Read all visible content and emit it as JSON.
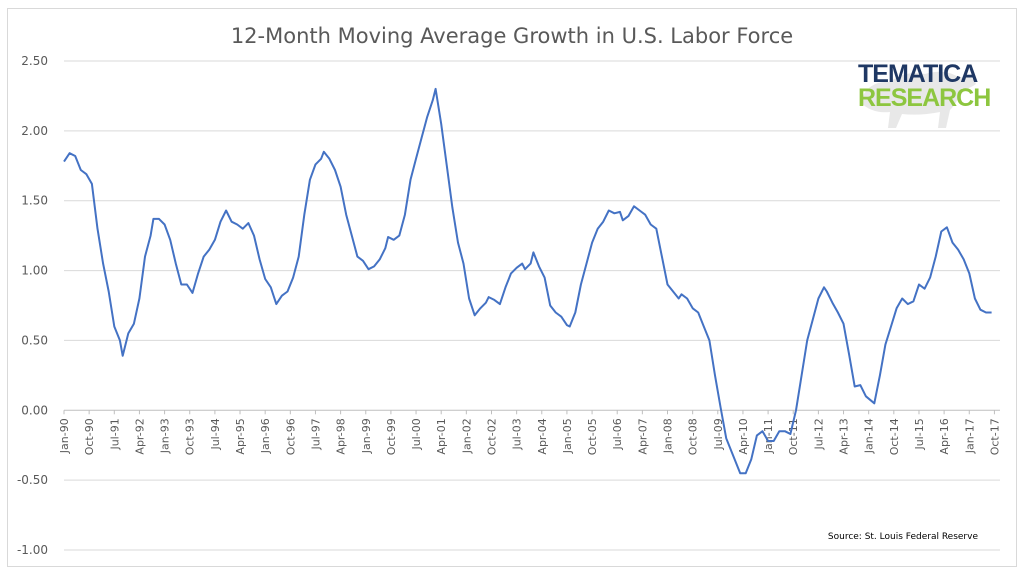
{
  "colors": {
    "line": "#4472c4",
    "grid": "#d9d9d9",
    "tick_text": "#595959",
    "logo_dark": "#1f3864",
    "logo_green": "#8dc63f"
  },
  "logo": {
    "line1": "TEMATICA",
    "line2": "RESEARCH"
  },
  "source_note": "Source: St. Louis Federal Reserve",
  "chart_data": {
    "type": "line",
    "title": "12-Month Moving Average Growth in U.S. Labor Force",
    "xlabel": "",
    "ylabel": "",
    "ylim": [
      -1.0,
      2.5
    ],
    "y_ticks": [
      "2.50",
      "2.00",
      "1.50",
      "1.00",
      "0.50",
      "0.00",
      "-0.50",
      "-1.00"
    ],
    "grid": "horizontal",
    "x_tick_labels": [
      "Jan-90",
      "Oct-90",
      "Jul-91",
      "Apr-92",
      "Jan-93",
      "Oct-93",
      "Jul-94",
      "Apr-95",
      "Jan-96",
      "Oct-96",
      "Jul-97",
      "Apr-98",
      "Jan-99",
      "Oct-99",
      "Jul-00",
      "Apr-01",
      "Jan-02",
      "Oct-02",
      "Jul-03",
      "Apr-04",
      "Jan-05",
      "Oct-05",
      "Jul-06",
      "Apr-07",
      "Jan-08",
      "Oct-08",
      "Jul-09",
      "Apr-10",
      "Jan-11",
      "Oct-11",
      "Jul-12",
      "Apr-13",
      "Jan-14",
      "Oct-14",
      "Jul-15",
      "Apr-16",
      "Jan-17",
      "Oct-17"
    ],
    "series": [
      {
        "values": [
          {
            "x": "Jan-90",
            "y": 1.78
          },
          {
            "x": "Mar-90",
            "y": 1.84
          },
          {
            "x": "May-90",
            "y": 1.82
          },
          {
            "x": "Jul-90",
            "y": 1.72
          },
          {
            "x": "Sep-90",
            "y": 1.69
          },
          {
            "x": "Nov-90",
            "y": 1.62
          },
          {
            "x": "Jan-91",
            "y": 1.3
          },
          {
            "x": "Mar-91",
            "y": 1.05
          },
          {
            "x": "May-91",
            "y": 0.85
          },
          {
            "x": "Jul-91",
            "y": 0.6
          },
          {
            "x": "Sep-91",
            "y": 0.5
          },
          {
            "x": "Oct-91",
            "y": 0.39
          },
          {
            "x": "Dec-91",
            "y": 0.55
          },
          {
            "x": "Feb-92",
            "y": 0.62
          },
          {
            "x": "Apr-92",
            "y": 0.8
          },
          {
            "x": "Jun-92",
            "y": 1.1
          },
          {
            "x": "Aug-92",
            "y": 1.25
          },
          {
            "x": "Sep-92",
            "y": 1.37
          },
          {
            "x": "Nov-92",
            "y": 1.37
          },
          {
            "x": "Jan-93",
            "y": 1.33
          },
          {
            "x": "Mar-93",
            "y": 1.22
          },
          {
            "x": "May-93",
            "y": 1.05
          },
          {
            "x": "Jul-93",
            "y": 0.9
          },
          {
            "x": "Sep-93",
            "y": 0.9
          },
          {
            "x": "Nov-93",
            "y": 0.84
          },
          {
            "x": "Jan-94",
            "y": 0.98
          },
          {
            "x": "Mar-94",
            "y": 1.1
          },
          {
            "x": "May-94",
            "y": 1.15
          },
          {
            "x": "Jul-94",
            "y": 1.22
          },
          {
            "x": "Sep-94",
            "y": 1.35
          },
          {
            "x": "Nov-94",
            "y": 1.43
          },
          {
            "x": "Jan-95",
            "y": 1.35
          },
          {
            "x": "Mar-95",
            "y": 1.33
          },
          {
            "x": "May-95",
            "y": 1.3
          },
          {
            "x": "Jul-95",
            "y": 1.34
          },
          {
            "x": "Sep-95",
            "y": 1.25
          },
          {
            "x": "Nov-95",
            "y": 1.08
          },
          {
            "x": "Jan-96",
            "y": 0.94
          },
          {
            "x": "Mar-96",
            "y": 0.88
          },
          {
            "x": "May-96",
            "y": 0.76
          },
          {
            "x": "Jul-96",
            "y": 0.82
          },
          {
            "x": "Sep-96",
            "y": 0.85
          },
          {
            "x": "Nov-96",
            "y": 0.95
          },
          {
            "x": "Jan-97",
            "y": 1.1
          },
          {
            "x": "Mar-97",
            "y": 1.4
          },
          {
            "x": "May-97",
            "y": 1.65
          },
          {
            "x": "Jul-97",
            "y": 1.76
          },
          {
            "x": "Sep-97",
            "y": 1.8
          },
          {
            "x": "Oct-97",
            "y": 1.85
          },
          {
            "x": "Dec-97",
            "y": 1.8
          },
          {
            "x": "Feb-98",
            "y": 1.72
          },
          {
            "x": "Apr-98",
            "y": 1.6
          },
          {
            "x": "Jun-98",
            "y": 1.4
          },
          {
            "x": "Aug-98",
            "y": 1.25
          },
          {
            "x": "Oct-98",
            "y": 1.1
          },
          {
            "x": "Dec-98",
            "y": 1.07
          },
          {
            "x": "Feb-99",
            "y": 1.01
          },
          {
            "x": "Apr-99",
            "y": 1.03
          },
          {
            "x": "Jun-99",
            "y": 1.08
          },
          {
            "x": "Aug-99",
            "y": 1.16
          },
          {
            "x": "Sep-99",
            "y": 1.24
          },
          {
            "x": "Nov-99",
            "y": 1.22
          },
          {
            "x": "Jan-00",
            "y": 1.25
          },
          {
            "x": "Mar-00",
            "y": 1.4
          },
          {
            "x": "May-00",
            "y": 1.65
          },
          {
            "x": "Jul-00",
            "y": 1.8
          },
          {
            "x": "Sep-00",
            "y": 1.95
          },
          {
            "x": "Nov-00",
            "y": 2.1
          },
          {
            "x": "Jan-01",
            "y": 2.22
          },
          {
            "x": "Feb-01",
            "y": 2.3
          },
          {
            "x": "Apr-01",
            "y": 2.05
          },
          {
            "x": "Jun-01",
            "y": 1.75
          },
          {
            "x": "Aug-01",
            "y": 1.45
          },
          {
            "x": "Oct-01",
            "y": 1.2
          },
          {
            "x": "Dec-01",
            "y": 1.05
          },
          {
            "x": "Feb-02",
            "y": 0.8
          },
          {
            "x": "Apr-02",
            "y": 0.68
          },
          {
            "x": "Jun-02",
            "y": 0.73
          },
          {
            "x": "Aug-02",
            "y": 0.77
          },
          {
            "x": "Sep-02",
            "y": 0.81
          },
          {
            "x": "Nov-02",
            "y": 0.79
          },
          {
            "x": "Jan-03",
            "y": 0.76
          },
          {
            "x": "Mar-03",
            "y": 0.88
          },
          {
            "x": "May-03",
            "y": 0.98
          },
          {
            "x": "Jul-03",
            "y": 1.02
          },
          {
            "x": "Sep-03",
            "y": 1.05
          },
          {
            "x": "Oct-03",
            "y": 1.01
          },
          {
            "x": "Dec-03",
            "y": 1.05
          },
          {
            "x": "Jan-04",
            "y": 1.13
          },
          {
            "x": "Mar-04",
            "y": 1.03
          },
          {
            "x": "May-04",
            "y": 0.95
          },
          {
            "x": "Jul-04",
            "y": 0.75
          },
          {
            "x": "Sep-04",
            "y": 0.7
          },
          {
            "x": "Nov-04",
            "y": 0.67
          },
          {
            "x": "Jan-05",
            "y": 0.61
          },
          {
            "x": "Feb-05",
            "y": 0.6
          },
          {
            "x": "Apr-05",
            "y": 0.7
          },
          {
            "x": "Jun-05",
            "y": 0.9
          },
          {
            "x": "Aug-05",
            "y": 1.05
          },
          {
            "x": "Oct-05",
            "y": 1.2
          },
          {
            "x": "Dec-05",
            "y": 1.3
          },
          {
            "x": "Feb-06",
            "y": 1.35
          },
          {
            "x": "Apr-06",
            "y": 1.43
          },
          {
            "x": "Jun-06",
            "y": 1.41
          },
          {
            "x": "Aug-06",
            "y": 1.42
          },
          {
            "x": "Sep-06",
            "y": 1.36
          },
          {
            "x": "Nov-06",
            "y": 1.39
          },
          {
            "x": "Jan-07",
            "y": 1.46
          },
          {
            "x": "Mar-07",
            "y": 1.43
          },
          {
            "x": "May-07",
            "y": 1.4
          },
          {
            "x": "Jul-07",
            "y": 1.33
          },
          {
            "x": "Sep-07",
            "y": 1.3
          },
          {
            "x": "Nov-07",
            "y": 1.1
          },
          {
            "x": "Jan-08",
            "y": 0.9
          },
          {
            "x": "Mar-08",
            "y": 0.85
          },
          {
            "x": "May-08",
            "y": 0.8
          },
          {
            "x": "Jun-08",
            "y": 0.83
          },
          {
            "x": "Aug-08",
            "y": 0.8
          },
          {
            "x": "Oct-08",
            "y": 0.73
          },
          {
            "x": "Dec-08",
            "y": 0.7
          },
          {
            "x": "Feb-09",
            "y": 0.6
          },
          {
            "x": "Apr-09",
            "y": 0.5
          },
          {
            "x": "Jun-09",
            "y": 0.25
          },
          {
            "x": "Aug-09",
            "y": 0.02
          },
          {
            "x": "Oct-09",
            "y": -0.2
          },
          {
            "x": "Dec-09",
            "y": -0.3
          },
          {
            "x": "Mar-10",
            "y": -0.45
          },
          {
            "x": "May-10",
            "y": -0.45
          },
          {
            "x": "Jul-10",
            "y": -0.35
          },
          {
            "x": "Sep-10",
            "y": -0.18
          },
          {
            "x": "Nov-10",
            "y": -0.15
          },
          {
            "x": "Jan-11",
            "y": -0.22
          },
          {
            "x": "Mar-11",
            "y": -0.22
          },
          {
            "x": "May-11",
            "y": -0.15
          },
          {
            "x": "Jul-11",
            "y": -0.15
          },
          {
            "x": "Sep-11",
            "y": -0.17
          },
          {
            "x": "Nov-11",
            "y": 0.0
          },
          {
            "x": "Jan-12",
            "y": 0.25
          },
          {
            "x": "Mar-12",
            "y": 0.5
          },
          {
            "x": "May-12",
            "y": 0.65
          },
          {
            "x": "Jul-12",
            "y": 0.8
          },
          {
            "x": "Sep-12",
            "y": 0.88
          },
          {
            "x": "Oct-12",
            "y": 0.85
          },
          {
            "x": "Dec-12",
            "y": 0.77
          },
          {
            "x": "Feb-13",
            "y": 0.7
          },
          {
            "x": "Apr-13",
            "y": 0.62
          },
          {
            "x": "Jun-13",
            "y": 0.4
          },
          {
            "x": "Aug-13",
            "y": 0.17
          },
          {
            "x": "Oct-13",
            "y": 0.18
          },
          {
            "x": "Dec-13",
            "y": 0.1
          },
          {
            "x": "Mar-14",
            "y": 0.05
          },
          {
            "x": "May-14",
            "y": 0.25
          },
          {
            "x": "Jul-14",
            "y": 0.47
          },
          {
            "x": "Sep-14",
            "y": 0.6
          },
          {
            "x": "Nov-14",
            "y": 0.73
          },
          {
            "x": "Jan-15",
            "y": 0.8
          },
          {
            "x": "Mar-15",
            "y": 0.76
          },
          {
            "x": "May-15",
            "y": 0.78
          },
          {
            "x": "Jul-15",
            "y": 0.9
          },
          {
            "x": "Sep-15",
            "y": 0.87
          },
          {
            "x": "Nov-15",
            "y": 0.95
          },
          {
            "x": "Jan-16",
            "y": 1.1
          },
          {
            "x": "Mar-16",
            "y": 1.28
          },
          {
            "x": "May-16",
            "y": 1.31
          },
          {
            "x": "Jul-16",
            "y": 1.2
          },
          {
            "x": "Sep-16",
            "y": 1.15
          },
          {
            "x": "Nov-16",
            "y": 1.08
          },
          {
            "x": "Jan-17",
            "y": 0.98
          },
          {
            "x": "Mar-17",
            "y": 0.8
          },
          {
            "x": "May-17",
            "y": 0.72
          },
          {
            "x": "Jul-17",
            "y": 0.7
          },
          {
            "x": "Sep-17",
            "y": 0.7
          }
        ]
      }
    ]
  }
}
